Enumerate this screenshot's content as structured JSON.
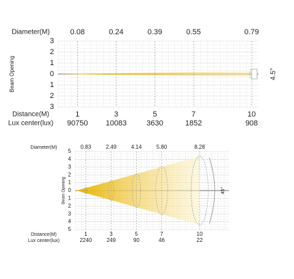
{
  "beams": [
    {
      "diameter_label": "Diameter(M)",
      "diameters": [
        "0.08",
        "0.24",
        "0.39",
        "0.55",
        "0.79"
      ],
      "axis_labels": [
        "3",
        "2",
        "1",
        "0",
        "1",
        "2",
        "3"
      ],
      "axis_title": "Beam Opening",
      "angle": "4.5°",
      "distance_label": "Distance(M)",
      "distances": [
        "1",
        "3",
        "5",
        "7",
        "10"
      ],
      "lux_label": "Lux center(lux)",
      "lux": [
        "90750",
        "10083",
        "3630",
        "1852",
        "908"
      ]
    },
    {
      "diameter_label": "Diameter(M)",
      "diameters": [
        "0.83",
        "2.49",
        "4.14",
        "5.80",
        "8.28"
      ],
      "axis_labels": [
        "5",
        "4",
        "3",
        "2",
        "1",
        "0",
        "1",
        "2",
        "3",
        "4",
        "5"
      ],
      "axis_title": "Beam Opening",
      "angle": "45°",
      "distance_label": "Distance(M)",
      "distances": [
        "1",
        "3",
        "5",
        "7",
        "10"
      ],
      "lux_label": "Lux center(lux)",
      "lux": [
        "2240",
        "249",
        "90",
        "46",
        "22"
      ]
    }
  ]
}
